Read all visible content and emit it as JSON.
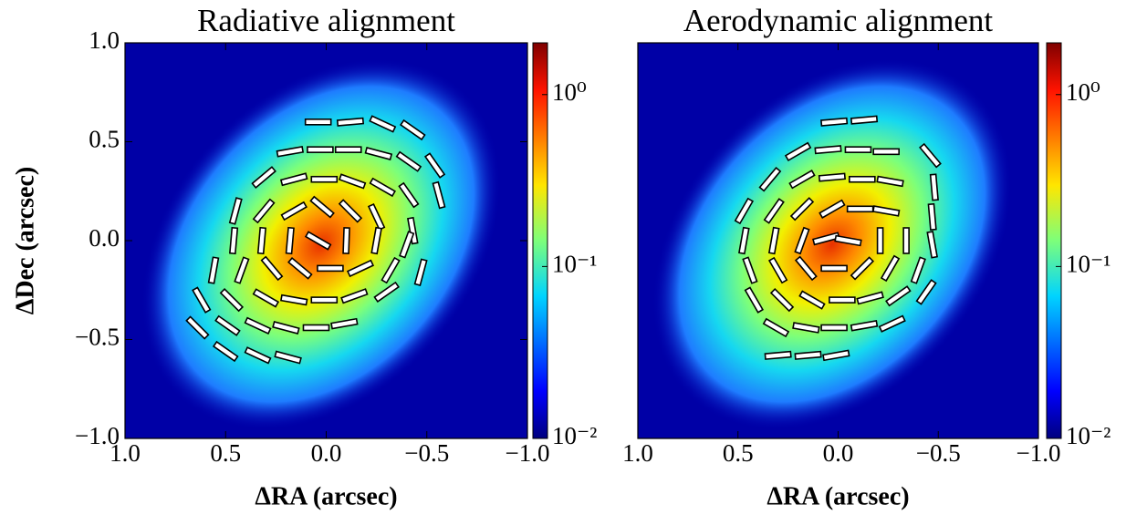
{
  "chart_data": [
    {
      "type": "image",
      "title": "Radiative alignment",
      "xlabel": "ΔRA (arcsec)",
      "ylabel": "ΔDec (arcsec)",
      "xlim": [
        1,
        -1
      ],
      "ylim": [
        -1,
        1
      ],
      "xticks": [
        {
          "value": 1,
          "label": "1.0"
        },
        0.5,
        {
          "value": 0,
          "label": "0.0"
        },
        {
          "value": -0.5,
          "label": "−0.5"
        },
        {
          "value": -1,
          "label": "−1.0"
        }
      ],
      "yticks": [
        {
          "value": -1,
          "label": "−1.0"
        },
        {
          "value": -0.5,
          "label": "−0.5"
        },
        {
          "value": 0,
          "label": "0.0"
        },
        0.5,
        {
          "value": 1,
          "label": "1.0"
        }
      ],
      "colorbar": {
        "scale": "log",
        "lim": [
          0.01,
          2
        ],
        "ticks": [
          {
            "value": 0.01,
            "label": "10⁻²"
          },
          {
            "value": 0.1,
            "label": "10⁻¹"
          },
          {
            "value": 1,
            "label": "10⁰"
          }
        ]
      },
      "vectors": [
        [
          0.04,
          0.6,
          0
        ],
        [
          -0.12,
          0.6,
          5
        ],
        [
          -0.28,
          0.59,
          -25
        ],
        [
          -0.43,
          0.56,
          -35
        ],
        [
          0.18,
          0.45,
          10
        ],
        [
          0.03,
          0.46,
          0
        ],
        [
          -0.11,
          0.46,
          0
        ],
        [
          -0.26,
          0.44,
          -15
        ],
        [
          -0.41,
          0.4,
          -35
        ],
        [
          -0.54,
          0.38,
          -55
        ],
        [
          0.31,
          0.32,
          40
        ],
        [
          0.16,
          0.31,
          15
        ],
        [
          0.01,
          0.31,
          0
        ],
        [
          -0.13,
          0.3,
          -20
        ],
        [
          -0.28,
          0.27,
          -30
        ],
        [
          -0.41,
          0.23,
          -55
        ],
        [
          -0.56,
          0.23,
          -75
        ],
        [
          0.45,
          0.15,
          75
        ],
        [
          0.31,
          0.15,
          50
        ],
        [
          0.16,
          0.15,
          30
        ],
        [
          0.02,
          0.17,
          -40
        ],
        [
          -0.12,
          0.15,
          -45
        ],
        [
          -0.25,
          0.12,
          -65
        ],
        [
          -0.43,
          0.05,
          -80
        ],
        [
          0.46,
          0.0,
          85
        ],
        [
          0.32,
          0.0,
          85
        ],
        [
          0.18,
          0.0,
          85
        ],
        [
          0.04,
          0.0,
          -30
        ],
        [
          -0.1,
          0.0,
          88
        ],
        [
          -0.25,
          0.0,
          80
        ],
        [
          -0.4,
          -0.02,
          70
        ],
        [
          0.56,
          -0.15,
          80
        ],
        [
          0.42,
          -0.15,
          70
        ],
        [
          0.27,
          -0.14,
          -50
        ],
        [
          0.13,
          -0.14,
          -40
        ],
        [
          -0.02,
          -0.14,
          0
        ],
        [
          -0.17,
          -0.14,
          25
        ],
        [
          -0.32,
          -0.15,
          60
        ],
        [
          -0.47,
          -0.16,
          75
        ],
        [
          0.62,
          -0.3,
          -60
        ],
        [
          0.47,
          -0.3,
          -45
        ],
        [
          0.3,
          -0.29,
          -30
        ],
        [
          0.16,
          -0.3,
          -10
        ],
        [
          0.01,
          -0.3,
          0
        ],
        [
          -0.14,
          -0.28,
          20
        ],
        [
          -0.3,
          -0.26,
          35
        ],
        [
          0.64,
          -0.44,
          -45
        ],
        [
          0.49,
          -0.43,
          -35
        ],
        [
          0.34,
          -0.43,
          -25
        ],
        [
          0.2,
          -0.44,
          -15
        ],
        [
          0.05,
          -0.44,
          0
        ],
        [
          -0.09,
          -0.42,
          10
        ],
        [
          0.5,
          -0.56,
          -35
        ],
        [
          0.34,
          -0.58,
          -25
        ],
        [
          0.19,
          -0.59,
          -15
        ]
      ]
    },
    {
      "type": "image",
      "title": "Aerodynamic alignment",
      "xlabel": "ΔRA (arcsec)",
      "xlim": [
        1,
        -1
      ],
      "ylim": [
        -1,
        1
      ],
      "xticks": [
        {
          "value": 1,
          "label": "1.0"
        },
        0.5,
        {
          "value": 0,
          "label": "0.0"
        },
        {
          "value": -0.5,
          "label": "−0.5"
        },
        {
          "value": -1,
          "label": "−1.0"
        }
      ],
      "colorbar": {
        "scale": "log",
        "lim": [
          0.01,
          2
        ],
        "ticks": [
          {
            "value": 0.01,
            "label": "10⁻²"
          },
          {
            "value": 0.1,
            "label": "10⁻¹"
          },
          {
            "value": 1,
            "label": "10⁰"
          }
        ]
      },
      "vectors": [
        [
          0.02,
          0.6,
          5
        ],
        [
          -0.13,
          0.61,
          5
        ],
        [
          0.2,
          0.45,
          30
        ],
        [
          0.05,
          0.46,
          5
        ],
        [
          -0.1,
          0.46,
          0
        ],
        [
          -0.24,
          0.45,
          0
        ],
        [
          -0.46,
          0.43,
          -50
        ],
        [
          0.34,
          0.31,
          50
        ],
        [
          0.18,
          0.31,
          30
        ],
        [
          0.03,
          0.32,
          5
        ],
        [
          -0.12,
          0.31,
          0
        ],
        [
          -0.26,
          0.3,
          -10
        ],
        [
          -0.48,
          0.27,
          -85
        ],
        [
          0.47,
          0.15,
          60
        ],
        [
          0.32,
          0.15,
          55
        ],
        [
          0.18,
          0.16,
          45
        ],
        [
          0.03,
          0.16,
          30
        ],
        [
          -0.11,
          0.16,
          0
        ],
        [
          -0.24,
          0.15,
          -10
        ],
        [
          -0.47,
          0.12,
          -85
        ],
        [
          0.47,
          0.0,
          80
        ],
        [
          0.32,
          0.0,
          80
        ],
        [
          0.18,
          0.0,
          70
        ],
        [
          0.06,
          0.01,
          15
        ],
        [
          -0.05,
          0.0,
          -10
        ],
        [
          -0.21,
          0.0,
          90
        ],
        [
          -0.34,
          0.0,
          -90
        ],
        [
          -0.47,
          -0.02,
          -80
        ],
        [
          0.44,
          -0.15,
          -70
        ],
        [
          0.3,
          -0.15,
          -60
        ],
        [
          0.16,
          -0.14,
          -50
        ],
        [
          0.02,
          -0.14,
          0
        ],
        [
          -0.12,
          -0.14,
          45
        ],
        [
          -0.26,
          -0.14,
          60
        ],
        [
          -0.4,
          -0.15,
          70
        ],
        [
          0.42,
          -0.3,
          -60
        ],
        [
          0.28,
          -0.3,
          -45
        ],
        [
          0.13,
          -0.3,
          -30
        ],
        [
          -0.02,
          -0.3,
          0
        ],
        [
          -0.16,
          -0.29,
          15
        ],
        [
          -0.3,
          -0.28,
          35
        ],
        [
          -0.44,
          -0.26,
          55
        ],
        [
          0.31,
          -0.44,
          -30
        ],
        [
          0.16,
          -0.44,
          -10
        ],
        [
          0.02,
          -0.44,
          0
        ],
        [
          -0.13,
          -0.43,
          10
        ],
        [
          -0.27,
          -0.42,
          25
        ],
        [
          0.3,
          -0.58,
          5
        ],
        [
          0.15,
          -0.58,
          5
        ],
        [
          0.01,
          -0.58,
          10
        ]
      ]
    }
  ]
}
